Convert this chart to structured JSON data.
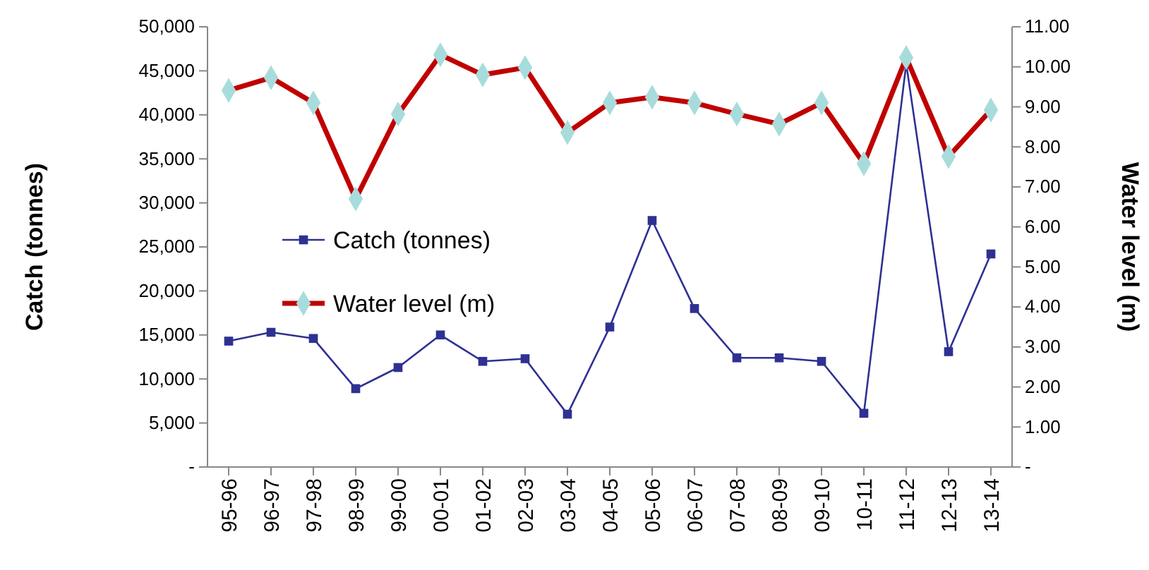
{
  "chart_data": {
    "type": "line",
    "ylabel": "Catch (tonnes)",
    "y2label": "Water level (m)",
    "categories": [
      "95-96",
      "96-97",
      "97-98",
      "98-99",
      "99-00",
      "00-01",
      "01-02",
      "02-03",
      "03-04",
      "04-05",
      "05-06",
      "06-07",
      "07-08",
      "08-09",
      "09-10",
      "10-11",
      "11-12",
      "12-13",
      "13-14"
    ],
    "series": [
      {
        "name": "Catch (tonnes)",
        "color": "#2e3192",
        "marker": "square",
        "values": [
          14300,
          15300,
          14600,
          8900,
          11300,
          15000,
          12000,
          12300,
          6000,
          15900,
          28000,
          18000,
          12400,
          12400,
          12000,
          6100,
          45800,
          13100,
          24200
        ]
      },
      {
        "name": "Water level (m)",
        "color": "#c00000",
        "marker": "diamond",
        "axis": "y2",
        "values": [
          9.41,
          9.73,
          9.1,
          6.7,
          8.82,
          10.3,
          9.8,
          9.98,
          8.36,
          9.1,
          9.24,
          9.1,
          8.82,
          8.57,
          9.1,
          7.58,
          10.23,
          7.76,
          8.92
        ]
      }
    ],
    "ylim": [
      0,
      50000
    ],
    "yticks": [
      {
        "value": 0,
        "label": "-"
      },
      {
        "value": 5000,
        "label": "5,000"
      },
      {
        "value": 10000,
        "label": "10,000"
      },
      {
        "value": 15000,
        "label": "15,000"
      },
      {
        "value": 20000,
        "label": "20,000"
      },
      {
        "value": 25000,
        "label": "25,000"
      },
      {
        "value": 30000,
        "label": "30,000"
      },
      {
        "value": 35000,
        "label": "35,000"
      },
      {
        "value": 40000,
        "label": "40,000"
      },
      {
        "value": 45000,
        "label": "45,000"
      },
      {
        "value": 50000,
        "label": "50,000"
      }
    ],
    "y2lim": [
      0,
      11
    ],
    "y2ticks": [
      {
        "value": 0,
        "label": "-"
      },
      {
        "value": 1,
        "label": "1.00"
      },
      {
        "value": 2,
        "label": "2.00"
      },
      {
        "value": 3,
        "label": "3.00"
      },
      {
        "value": 4,
        "label": "4.00"
      },
      {
        "value": 5,
        "label": "5.00"
      },
      {
        "value": 6,
        "label": "6.00"
      },
      {
        "value": 7,
        "label": "7.00"
      },
      {
        "value": 8,
        "label": "8.00"
      },
      {
        "value": 9,
        "label": "9.00"
      },
      {
        "value": 10,
        "label": "10.00"
      },
      {
        "value": 11,
        "label": "11.00"
      }
    ],
    "grid": false,
    "legend": "left"
  }
}
